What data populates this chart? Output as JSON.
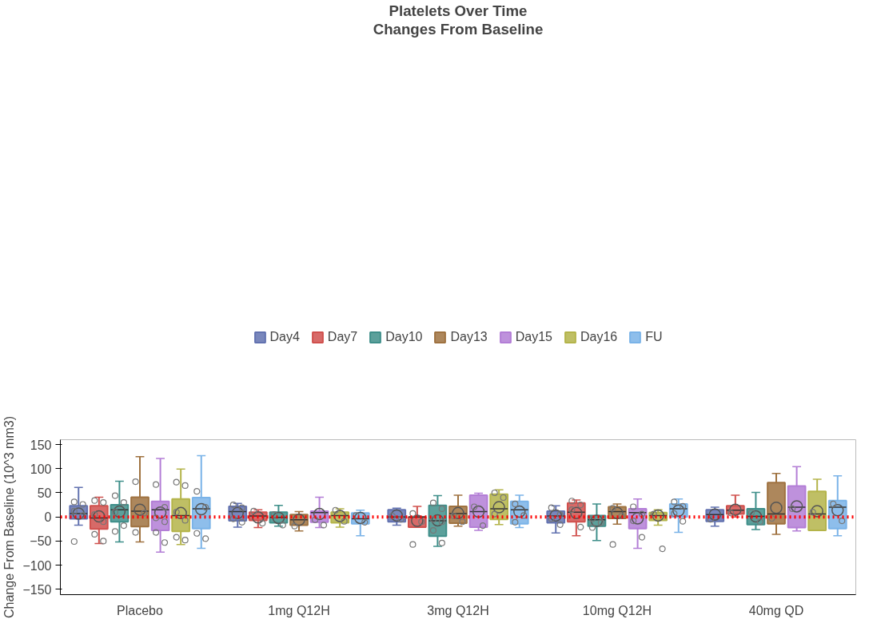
{
  "chart_data": {
    "type": "box",
    "title": "Platelets Over Time",
    "subtitle": "Changes From Baseline",
    "ylabel": "Change From Baseline (10^3 mm3)",
    "categories": [
      "Placebo",
      "1mg Q12H",
      "3mg Q12H",
      "10mg Q12H",
      "40mg QD"
    ],
    "ylim": [
      -161,
      160
    ],
    "yticks": [
      -150,
      -100,
      -50,
      0,
      50,
      100,
      150
    ],
    "grid": false,
    "legend": "top",
    "ref_lines": [
      {
        "axis": "y",
        "value": 0,
        "color": "#ff0000",
        "line_style": "dotted"
      }
    ],
    "series": [
      {
        "name": "Day4",
        "color": "#6272b0",
        "boxes": [
          {
            "low": -17,
            "q1": -4,
            "median": 7,
            "q3": 23,
            "high": 61,
            "mean": 7,
            "outliers": [
              31,
              26,
              12,
              3,
              -51
            ]
          },
          {
            "low": -21,
            "q1": -8,
            "median": 11,
            "q3": 22,
            "high": 28,
            "mean": 8,
            "outliers": [
              25,
              19,
              -4,
              -11
            ]
          },
          {
            "low": -17,
            "q1": -10,
            "median": 0,
            "q3": 15,
            "high": 18,
            "mean": 3,
            "outliers": [
              2,
              -5
            ]
          },
          {
            "low": -33,
            "q1": -12,
            "median": 2,
            "q3": 12,
            "high": 23,
            "mean": 3,
            "outliers": [
              19,
              5,
              -4,
              -16
            ]
          },
          {
            "low": -19,
            "q1": -9,
            "median": 5,
            "q3": 15,
            "high": 20,
            "mean": 5,
            "outliers": [
              -5
            ]
          }
        ]
      },
      {
        "name": "Day7",
        "color": "#d0504d",
        "boxes": [
          {
            "low": -55,
            "q1": -25,
            "median": -2,
            "q3": 23,
            "high": 41,
            "mean": 1,
            "outliers": [
              34,
              30,
              5,
              -10,
              -36,
              -50
            ]
          },
          {
            "low": -22,
            "q1": -7,
            "median": 2,
            "q3": 10,
            "high": 15,
            "mean": -1,
            "outliers": [
              12,
              -13
            ]
          },
          {
            "low": -21,
            "q1": -21,
            "median": 0,
            "q3": 0,
            "high": 22,
            "mean": -8,
            "outliers": [
              7,
              -10,
              -57
            ]
          },
          {
            "low": -39,
            "q1": -10,
            "median": 10,
            "q3": 29,
            "high": 35,
            "mean": 8,
            "outliers": [
              33,
              25,
              15,
              -21
            ]
          },
          {
            "low": 0,
            "q1": 6,
            "median": 14,
            "q3": 23,
            "high": 45,
            "mean": 15,
            "outliers": [
              8
            ]
          }
        ]
      },
      {
        "name": "Day10",
        "color": "#3f8f8a",
        "boxes": [
          {
            "low": -52,
            "q1": -10,
            "median": 15,
            "q3": 25,
            "high": 74,
            "mean": 11,
            "outliers": [
              44,
              30,
              10,
              -18,
              -30
            ]
          },
          {
            "low": -19,
            "q1": -12,
            "median": -1,
            "q3": 10,
            "high": 24,
            "mean": -2,
            "outliers": [
              5,
              -17
            ]
          },
          {
            "low": -61,
            "q1": -40,
            "median": -8,
            "q3": 24,
            "high": 44,
            "mean": -7,
            "outliers": [
              29,
              17,
              -5,
              -10,
              -28,
              -54
            ]
          },
          {
            "low": -49,
            "q1": -19,
            "median": -6,
            "q3": 3,
            "high": 27,
            "mean": -8,
            "outliers": [
              -4,
              -12,
              -22
            ]
          },
          {
            "low": -26,
            "q1": -16,
            "median": 1,
            "q3": 17,
            "high": 51,
            "mean": 1,
            "outliers": [
              9,
              -10
            ]
          }
        ]
      },
      {
        "name": "Day13",
        "color": "#9f7240",
        "boxes": [
          {
            "low": -52,
            "q1": -20,
            "median": 12,
            "q3": 41,
            "high": 125,
            "mean": 15,
            "outliers": [
              73,
              8,
              -32
            ]
          },
          {
            "low": -29,
            "q1": -17,
            "median": -6,
            "q3": 5,
            "high": 11,
            "mean": -6,
            "outliers": [
              -19
            ]
          },
          {
            "low": -19,
            "q1": -13,
            "median": 7,
            "q3": 22,
            "high": 45,
            "mean": 8,
            "outliers": [
              2,
              -10
            ]
          },
          {
            "low": -15,
            "q1": -3,
            "median": 11,
            "q3": 21,
            "high": 27,
            "mean": 8,
            "outliers": [
              18,
              2,
              -57
            ]
          },
          {
            "low": -36,
            "q1": -14,
            "median": 6,
            "q3": 71,
            "high": 90,
            "mean": 19,
            "outliers": [
              -3
            ]
          }
        ]
      },
      {
        "name": "Day15",
        "color": "#b37ed6",
        "boxes": [
          {
            "low": -73,
            "q1": -28,
            "median": 15,
            "q3": 32,
            "high": 121,
            "mean": 9,
            "outliers": [
              67,
              20,
              -2,
              -10,
              -32,
              -53
            ]
          },
          {
            "low": -22,
            "q1": -11,
            "median": 9,
            "q3": 12,
            "high": 41,
            "mean": 6,
            "outliers": [
              -6,
              -17
            ]
          },
          {
            "low": -28,
            "q1": -21,
            "median": 11,
            "q3": 45,
            "high": 49,
            "mean": 11,
            "outliers": [
              21,
              -18
            ]
          },
          {
            "low": -65,
            "q1": -24,
            "median": 9,
            "q3": 17,
            "high": 37,
            "mean": -3,
            "outliers": [
              21,
              6,
              -8,
              -42
            ]
          },
          {
            "low": -29,
            "q1": -22,
            "median": 20,
            "q3": 64,
            "high": 104,
            "mean": 22,
            "outliers": [
              17
            ]
          }
        ]
      },
      {
        "name": "Day16",
        "color": "#b4b44a",
        "boxes": [
          {
            "low": -57,
            "q1": -30,
            "median": 3,
            "q3": 37,
            "high": 99,
            "mean": 8,
            "outliers": [
              72,
              65,
              10,
              -7,
              -42,
              -48
            ]
          },
          {
            "low": -21,
            "q1": -12,
            "median": 3,
            "q3": 10,
            "high": 17,
            "mean": 2,
            "outliers": [
              14,
              -9
            ]
          },
          {
            "low": -16,
            "q1": -5,
            "median": 17,
            "q3": 47,
            "high": 56,
            "mean": 20,
            "outliers": [
              50,
              40,
              6
            ]
          },
          {
            "low": -17,
            "q1": -7,
            "median": 3,
            "q3": 9,
            "high": 15,
            "mean": 3,
            "outliers": [
              6,
              -66
            ]
          },
          {
            "low": -28,
            "q1": -28,
            "median": 6,
            "q3": 53,
            "high": 78,
            "mean": 12,
            "outliers": [
              10
            ]
          }
        ]
      },
      {
        "name": "FU",
        "color": "#7ab3e8",
        "boxes": [
          {
            "low": -65,
            "q1": -24,
            "median": 17,
            "q3": 40,
            "high": 127,
            "mean": 16,
            "outliers": [
              53,
              20,
              -34,
              -45
            ]
          },
          {
            "low": -39,
            "q1": -14,
            "median": -4,
            "q3": 8,
            "high": 14,
            "mean": -2,
            "outliers": [
              3,
              -11
            ]
          },
          {
            "low": -22,
            "q1": -14,
            "median": 15,
            "q3": 32,
            "high": 45,
            "mean": 11,
            "outliers": [
              27,
              3,
              -11
            ]
          },
          {
            "low": -32,
            "q1": 0,
            "median": 17,
            "q3": 27,
            "high": 37,
            "mean": 13,
            "outliers": [
              31,
              22,
              7,
              -9
            ]
          },
          {
            "low": -39,
            "q1": -24,
            "median": 20,
            "q3": 34,
            "high": 85,
            "mean": 14,
            "outliers": [
              27,
              -8
            ]
          }
        ]
      }
    ]
  }
}
